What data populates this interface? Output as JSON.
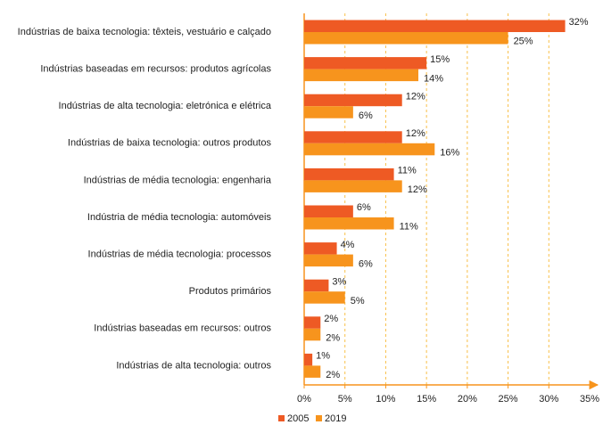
{
  "chart_data": {
    "type": "bar",
    "orientation": "horizontal",
    "categories": [
      "Indústrias de baixa tecnologia: têxteis, vestuário e calçado",
      "Indústrias baseadas em recursos: produtos agrícolas",
      "Indústrias de alta tecnologia: eletrónica e elétrica",
      "Indústrias de baixa tecnologia: outros produtos",
      "Indústrias de média tecnologia: engenharia",
      "Indústria de média tecnologia: automóveis",
      "Indústrias de média tecnologia: processos",
      "Produtos primários",
      "Indústrias baseadas em recursos: outros",
      "Indústrias de alta tecnologia: outros"
    ],
    "series": [
      {
        "name": "2005",
        "color": "#ee5a24",
        "values": [
          32,
          15,
          12,
          12,
          11,
          6,
          4,
          3,
          2,
          1
        ],
        "value_labels": [
          "32%",
          "15%",
          "12%",
          "12%",
          "11%",
          "6%",
          "4%",
          "3%",
          "2%",
          "1%"
        ]
      },
      {
        "name": "2019",
        "color": "#f7941d",
        "values": [
          25,
          14,
          6,
          16,
          12,
          11,
          6,
          5,
          2,
          2
        ],
        "value_labels": [
          "25%",
          "14%",
          "6%",
          "16%",
          "12%",
          "11%",
          "6%",
          "5%",
          "2%",
          "2%"
        ]
      }
    ],
    "xlim": [
      0,
      35
    ],
    "xticks": [
      {
        "value": 0,
        "label": "0%"
      },
      {
        "value": 5,
        "label": "5%"
      },
      {
        "value": 10,
        "label": "10%"
      },
      {
        "value": 15,
        "label": "15%"
      },
      {
        "value": 20,
        "label": "20%"
      },
      {
        "value": 25,
        "label": "25%"
      },
      {
        "value": 30,
        "label": "30%"
      },
      {
        "value": 35,
        "label": "35%"
      }
    ],
    "grid": true,
    "legend": "bottom"
  }
}
